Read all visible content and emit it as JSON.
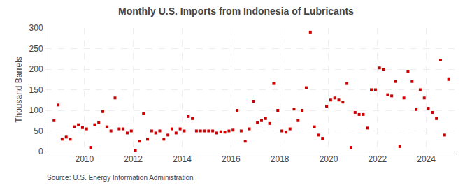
{
  "chart_data": {
    "type": "scatter",
    "title": "Monthly U.S. Imports from Indonesia of Lubricants",
    "ylabel": "Thousand Barrels",
    "annotations": [
      "Source: U.S. Energy Information Administration"
    ],
    "color": "#cc0000",
    "marker": "square",
    "grid": true,
    "xlim": [
      2008.4,
      2025.3
    ],
    "xticks": [
      2010,
      2012,
      2014,
      2016,
      2018,
      2020,
      2022,
      2024
    ],
    "ylim": [
      0,
      300
    ],
    "yticks": [
      0,
      50,
      100,
      150,
      200,
      250,
      300
    ],
    "x": [
      2008.75,
      2008.917,
      2009.083,
      2009.25,
      2009.417,
      2009.583,
      2009.75,
      2009.917,
      2010.083,
      2010.25,
      2010.417,
      2010.583,
      2010.75,
      2010.917,
      2011.083,
      2011.25,
      2011.417,
      2011.583,
      2011.75,
      2011.917,
      2012.083,
      2012.25,
      2012.417,
      2012.583,
      2012.75,
      2012.917,
      2013.083,
      2013.25,
      2013.417,
      2013.583,
      2013.75,
      2013.917,
      2014.083,
      2014.25,
      2014.417,
      2014.583,
      2014.75,
      2014.917,
      2015.083,
      2015.25,
      2015.417,
      2015.583,
      2015.75,
      2015.917,
      2016.083,
      2016.25,
      2016.417,
      2016.583,
      2016.75,
      2016.917,
      2017.083,
      2017.25,
      2017.417,
      2017.583,
      2017.75,
      2017.917,
      2018.083,
      2018.25,
      2018.417,
      2018.583,
      2018.75,
      2018.917,
      2019.083,
      2019.25,
      2019.417,
      2019.583,
      2019.75,
      2019.917,
      2020.083,
      2020.25,
      2020.417,
      2020.583,
      2020.75,
      2020.917,
      2021.083,
      2021.25,
      2021.417,
      2021.583,
      2021.75,
      2021.917,
      2022.083,
      2022.25,
      2022.417,
      2022.583,
      2022.75,
      2022.917,
      2023.083,
      2023.25,
      2023.417,
      2023.583,
      2023.75,
      2023.917,
      2024.083,
      2024.25,
      2024.417,
      2024.583,
      2024.75,
      2024.917
    ],
    "values": [
      75,
      113,
      30,
      35,
      30,
      60,
      65,
      58,
      55,
      10,
      65,
      70,
      97,
      60,
      50,
      130,
      55,
      55,
      45,
      50,
      3,
      25,
      92,
      30,
      50,
      45,
      50,
      30,
      40,
      55,
      45,
      55,
      50,
      85,
      80,
      50,
      50,
      50,
      50,
      50,
      45,
      48,
      47,
      50,
      52,
      100,
      50,
      25,
      55,
      122,
      70,
      75,
      80,
      68,
      165,
      100,
      50,
      47,
      55,
      103,
      75,
      100,
      155,
      290,
      60,
      40,
      32,
      110,
      125,
      130,
      125,
      120,
      165,
      10,
      95,
      90,
      90,
      57,
      150,
      150,
      203,
      200,
      138,
      135,
      170,
      12,
      130,
      195,
      170,
      102,
      150,
      130,
      105,
      95,
      80,
      222,
      40,
      175
    ]
  }
}
